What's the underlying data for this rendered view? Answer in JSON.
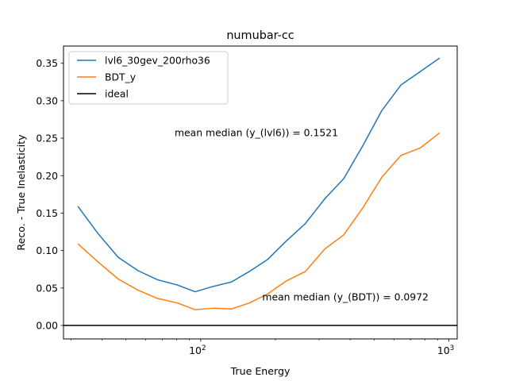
{
  "chart_data": {
    "type": "line",
    "title": "numubar-cc",
    "xlabel": "True Energy",
    "ylabel": "Reco. - True Inelasticity",
    "xscale": "log",
    "xlim": [
      28,
      1080
    ],
    "ylim": [
      -0.018,
      0.373
    ],
    "grid": false,
    "legend_position": "top-left",
    "x_major_ticks": [
      {
        "value": 100,
        "base": "10",
        "exp": "2"
      },
      {
        "value": 1000,
        "base": "10",
        "exp": "3"
      }
    ],
    "x_minor_ticks": [
      30,
      40,
      50,
      60,
      70,
      80,
      90,
      200,
      300,
      400,
      500,
      600,
      700,
      800,
      900
    ],
    "y_ticks": [
      0.0,
      0.05,
      0.1,
      0.15,
      0.2,
      0.25,
      0.3,
      0.35
    ],
    "y_tick_labels": [
      "0.00",
      "0.05",
      "0.10",
      "0.15",
      "0.20",
      "0.25",
      "0.30",
      "0.35"
    ],
    "x": [
      32,
      38.5,
      46.5,
      56,
      67,
      80.5,
      95,
      112,
      133,
      157,
      186,
      220,
      264,
      316,
      377,
      450,
      537,
      641,
      767,
      917
    ],
    "series": [
      {
        "name": "lvl6_30gev_200rho36",
        "color": "#1f77b4",
        "values": [
          0.159,
          0.123,
          0.091,
          0.073,
          0.061,
          0.054,
          0.045,
          0.052,
          0.058,
          0.072,
          0.088,
          0.112,
          0.136,
          0.169,
          0.196,
          0.24,
          0.287,
          0.321,
          0.339,
          0.357
        ]
      },
      {
        "name": "BDT_y",
        "color": "#ff7f0e",
        "values": [
          0.109,
          0.085,
          0.062,
          0.047,
          0.036,
          0.03,
          0.021,
          0.023,
          0.022,
          0.03,
          0.042,
          0.059,
          0.072,
          0.102,
          0.121,
          0.157,
          0.198,
          0.227,
          0.237,
          0.257
        ]
      }
    ],
    "reference_line": {
      "name": "ideal",
      "y": 0.0,
      "color": "#000000"
    },
    "annotations": [
      {
        "text": "mean median (y_(lvl6)) = 0.1521",
        "x": 78.5,
        "y": 0.2525
      },
      {
        "text": "mean median (y_(BDT)) = 0.0972",
        "x": 177,
        "y": 0.0335
      }
    ]
  }
}
